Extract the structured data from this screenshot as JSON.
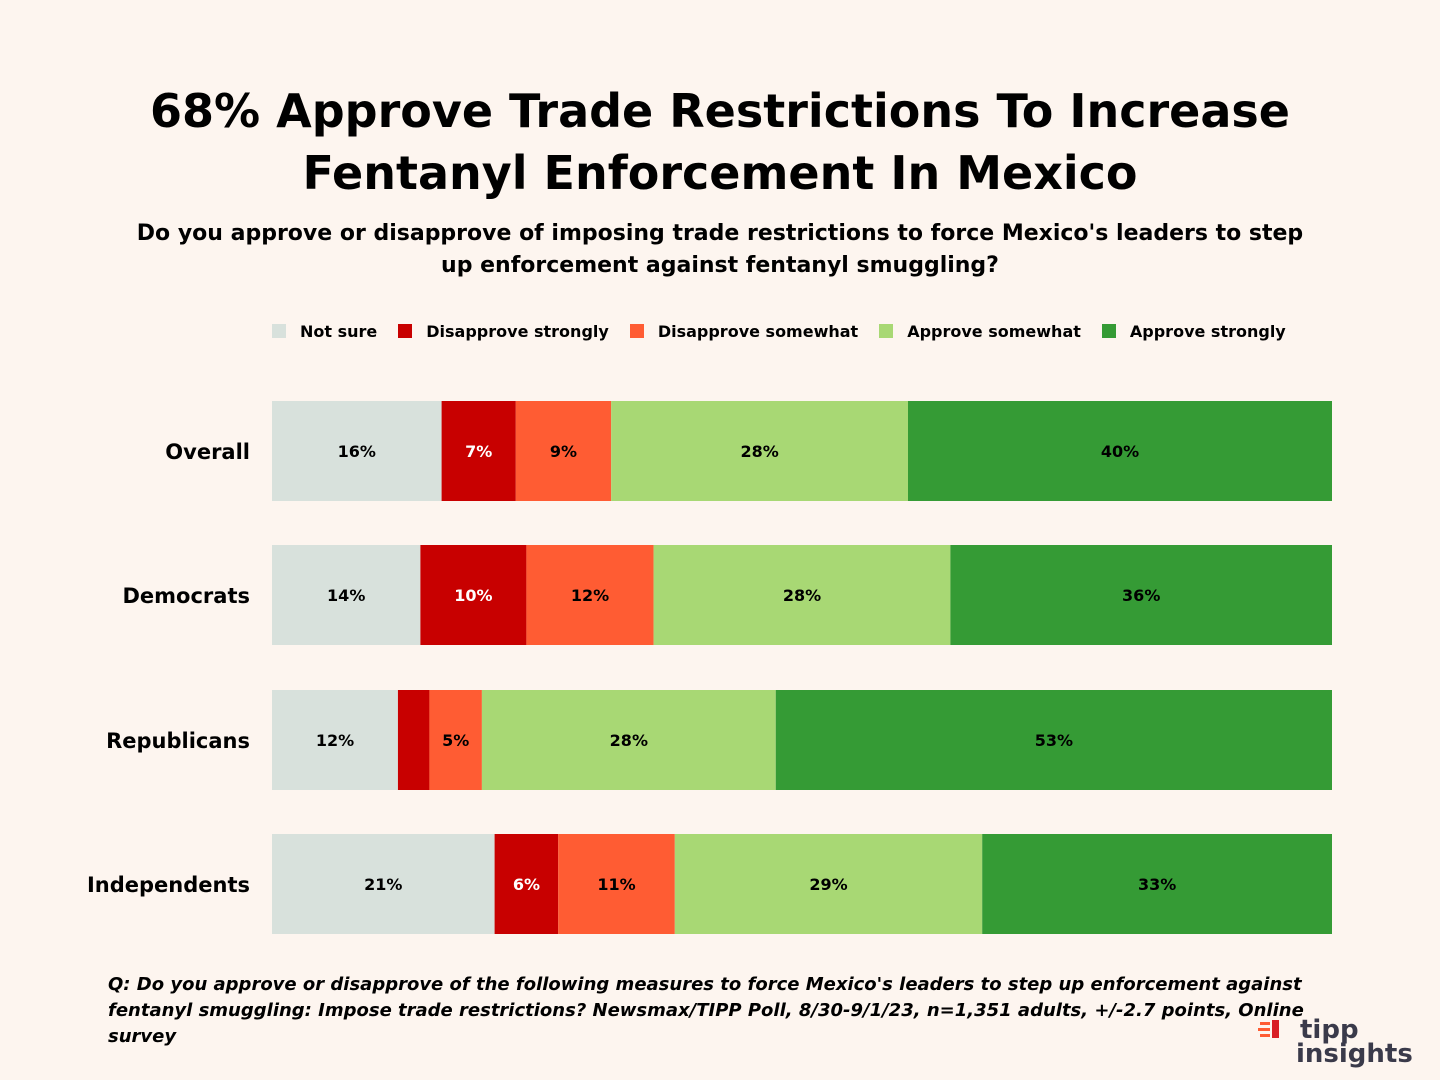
{
  "title_line1": "68% Approve Trade Restrictions To Increase",
  "title_line2": "Fentanyl Enforcement In Mexico",
  "subtitle": "Do you approve or disapprove of imposing trade restrictions to force Mexico's leaders to step up enforcement against fentanyl smuggling?",
  "footnote": "Q: Do you approve or disapprove of the following measures to force Mexico's leaders to step up enforcement against fentanyl smuggling: Impose trade restrictions? Newsmax/TIPP Poll, 8/30-9/1/23, n=1,351 adults, +/-2.7 points, Online survey",
  "logo": {
    "line1": "tipp",
    "line2": "insights"
  },
  "chart_data": {
    "type": "bar",
    "orientation": "horizontal",
    "stacked": true,
    "title": "68% Approve Trade Restrictions To Increase Fentanyl Enforcement In Mexico",
    "legend_position": "top",
    "categories": [
      "Overall",
      "Democrats",
      "Republicans",
      "Independents"
    ],
    "series": [
      {
        "name": "Not sure",
        "color": "#d8e1dc",
        "label_color": "#000000",
        "values": [
          16,
          14,
          12,
          21
        ],
        "labels": [
          "16%",
          "14%",
          "12%",
          "21%"
        ]
      },
      {
        "name": "Disapprove strongly",
        "color": "#c80000",
        "label_color": "#ffffff",
        "values": [
          7,
          10,
          3,
          6
        ],
        "labels": [
          "7%",
          "10%",
          "",
          "6%"
        ]
      },
      {
        "name": "Disapprove somewhat",
        "color": "#ff5c33",
        "label_color": "#000000",
        "values": [
          9,
          12,
          5,
          11
        ],
        "labels": [
          "9%",
          "12%",
          "5%",
          "11%"
        ]
      },
      {
        "name": "Approve somewhat",
        "color": "#a8d874",
        "label_color": "#000000",
        "values": [
          28,
          28,
          28,
          29
        ],
        "labels": [
          "28%",
          "28%",
          "28%",
          "29%"
        ]
      },
      {
        "name": "Approve strongly",
        "color": "#359b35",
        "label_color": "#000000",
        "values": [
          40,
          36,
          53,
          33
        ],
        "labels": [
          "40%",
          "36%",
          "53%",
          "33%"
        ]
      }
    ]
  }
}
